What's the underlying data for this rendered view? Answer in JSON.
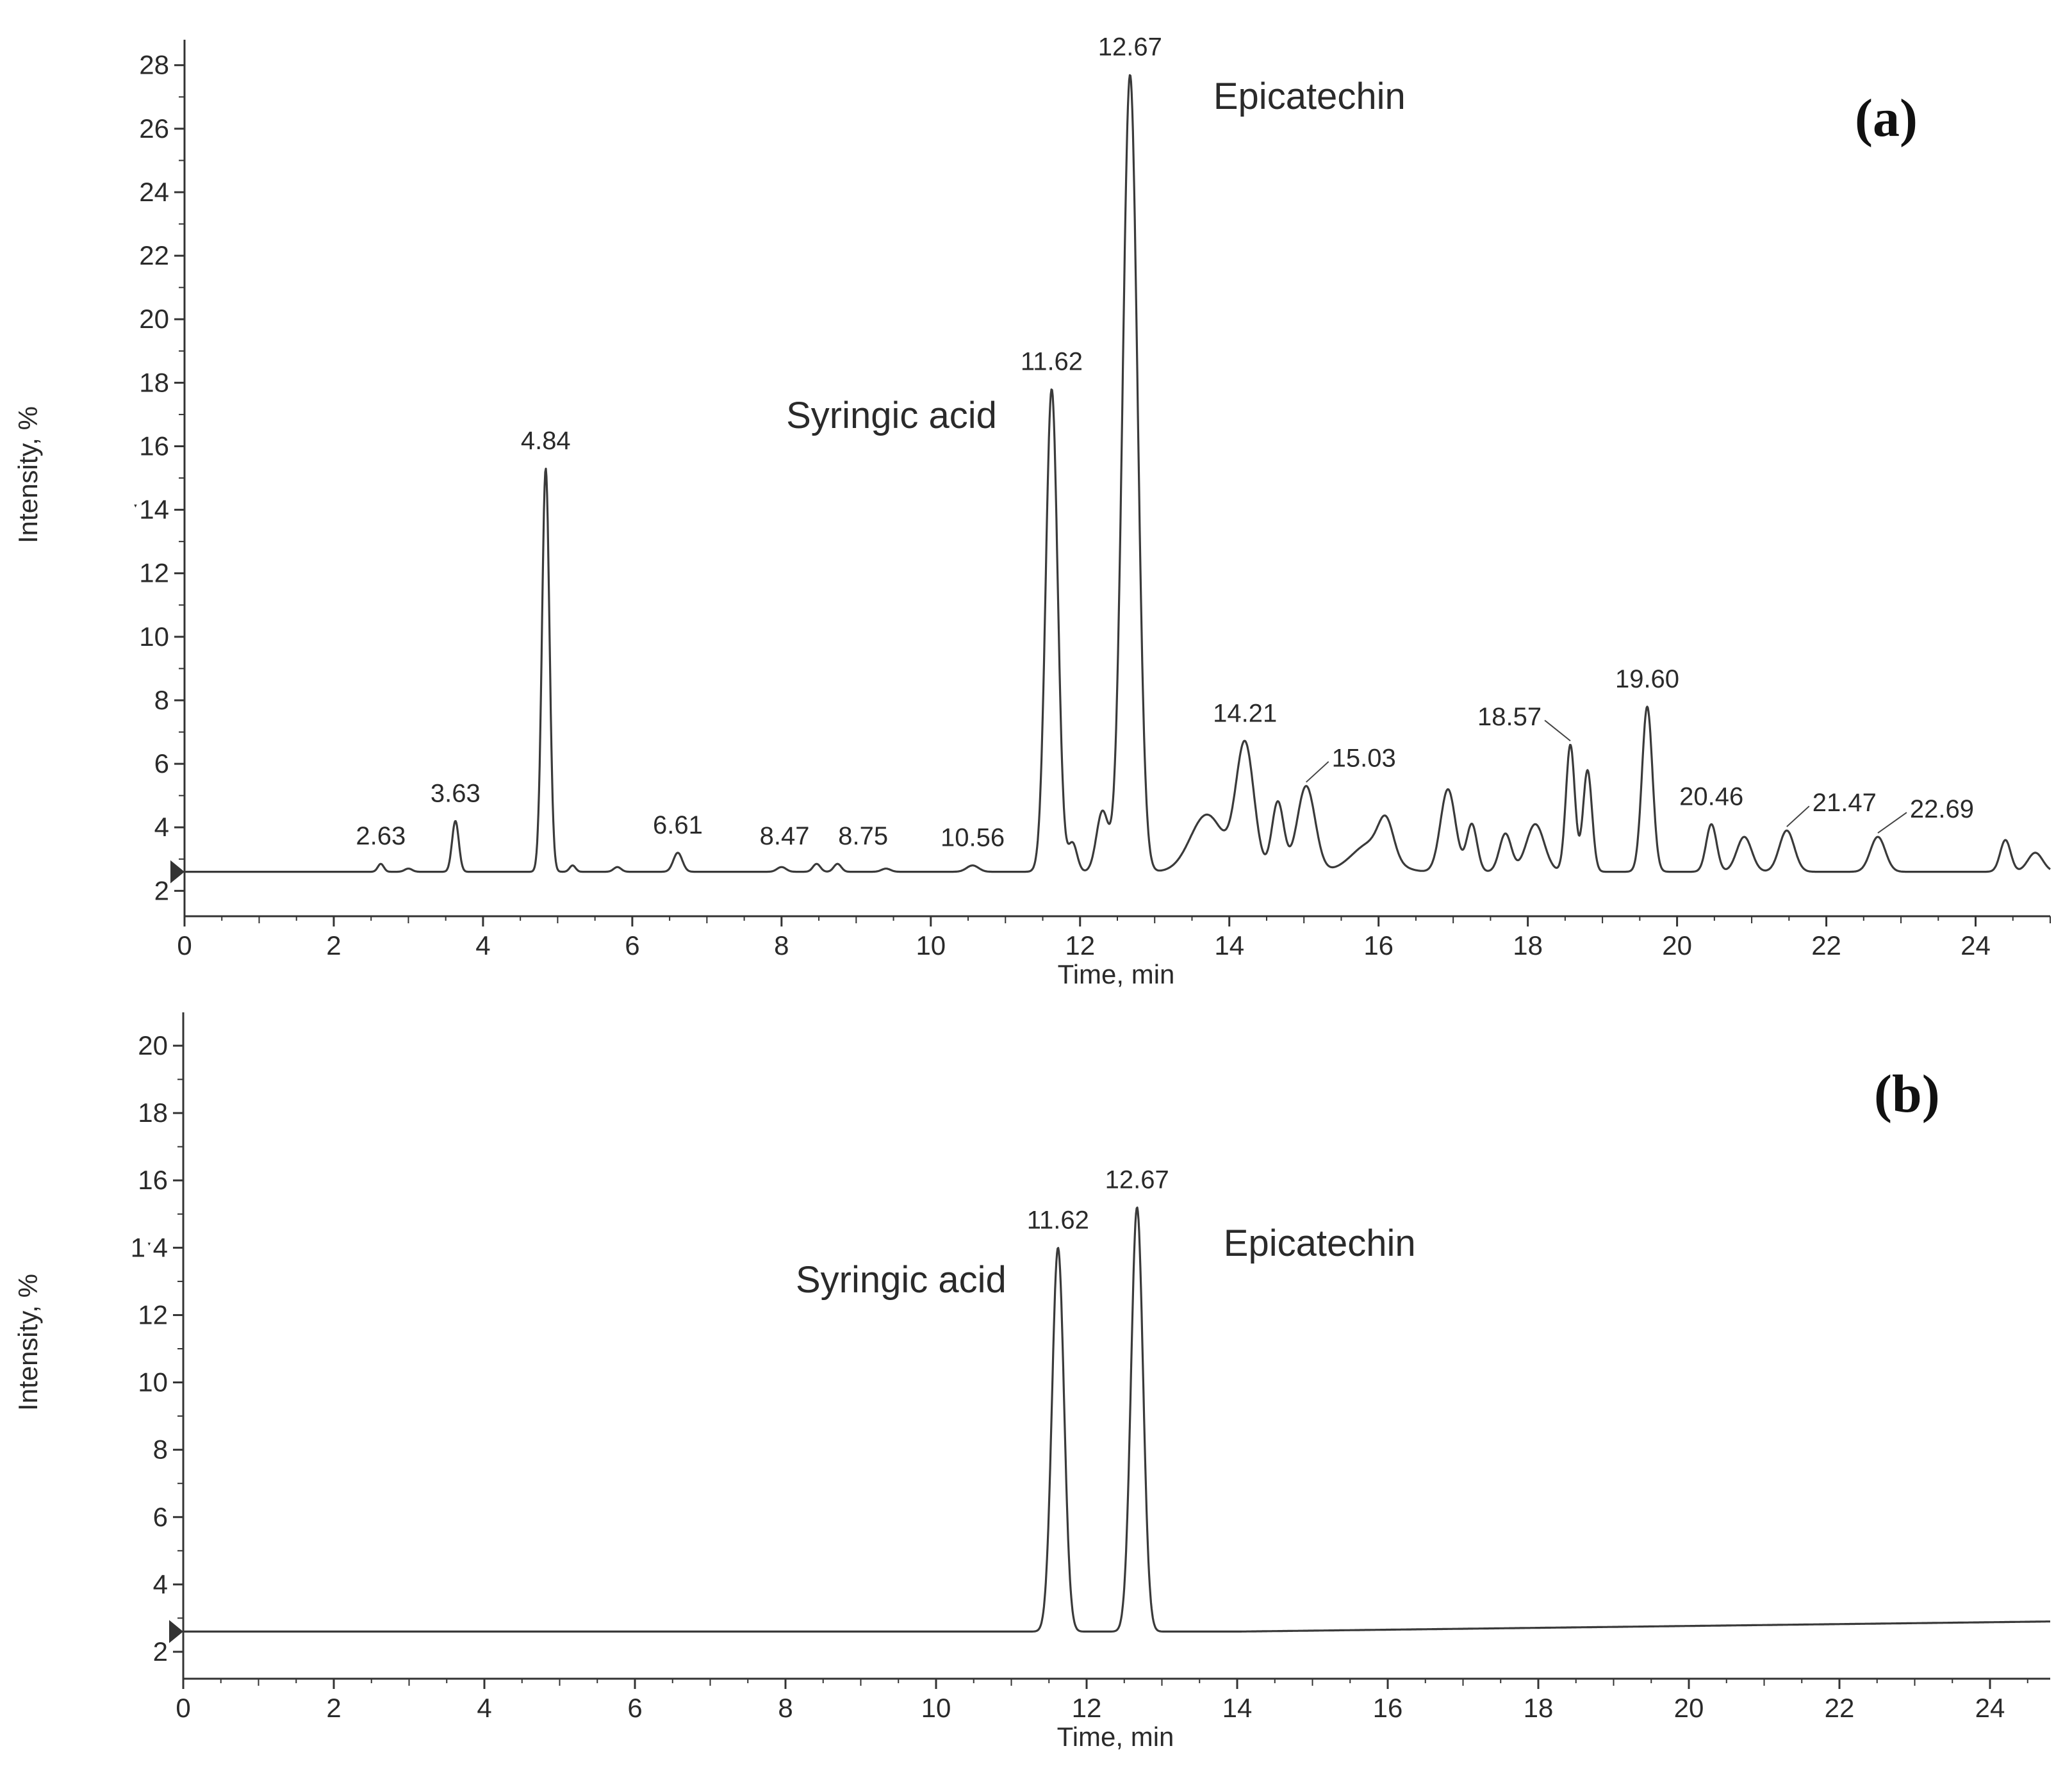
{
  "chart_data": [
    {
      "type": "line",
      "panel_label": "(a)",
      "xlabel": "Time, min",
      "ylabel": "Intensity, %",
      "xlim": [
        0,
        25
      ],
      "ylim": [
        1.2,
        28.6
      ],
      "x_ticks": [
        "0",
        "2",
        "4",
        "6",
        "8",
        "10",
        "12",
        "14",
        "16",
        "18",
        "20",
        "22",
        "24"
      ],
      "y_ticks": [
        "2",
        "4",
        "6",
        "8",
        "10",
        "12",
        "ˑ14",
        "16",
        "18",
        "20",
        "22",
        "24",
        "26",
        "28"
      ],
      "baseline": 2.6,
      "peaks": [
        {
          "rt": 2.63,
          "height": 2.85,
          "width": 0.04
        },
        {
          "rt": 3.0,
          "height": 2.7,
          "width": 0.05
        },
        {
          "rt": 3.63,
          "height": 4.2,
          "width": 0.045
        },
        {
          "rt": 4.84,
          "height": 15.3,
          "width": 0.05
        },
        {
          "rt": 5.2,
          "height": 2.8,
          "width": 0.04
        },
        {
          "rt": 5.8,
          "height": 2.75,
          "width": 0.05
        },
        {
          "rt": 6.61,
          "height": 3.2,
          "width": 0.06
        },
        {
          "rt": 8.0,
          "height": 2.75,
          "width": 0.06
        },
        {
          "rt": 8.47,
          "height": 2.85,
          "width": 0.05
        },
        {
          "rt": 8.75,
          "height": 2.85,
          "width": 0.05
        },
        {
          "rt": 9.4,
          "height": 2.7,
          "width": 0.06
        },
        {
          "rt": 10.56,
          "height": 2.8,
          "width": 0.08
        },
        {
          "rt": 11.62,
          "height": 17.8,
          "width": 0.08
        },
        {
          "rt": 11.9,
          "height": 3.5,
          "width": 0.06
        },
        {
          "rt": 12.3,
          "height": 4.5,
          "width": 0.08
        },
        {
          "rt": 12.67,
          "height": 27.7,
          "width": 0.1
        },
        {
          "rt": 13.7,
          "height": 4.4,
          "width": 0.22
        },
        {
          "rt": 14.21,
          "height": 6.6,
          "width": 0.12
        },
        {
          "rt": 14.65,
          "height": 4.8,
          "width": 0.08
        },
        {
          "rt": 15.03,
          "height": 5.3,
          "width": 0.12
        },
        {
          "rt": 15.9,
          "height": 3.5,
          "width": 0.25
        },
        {
          "rt": 16.1,
          "height": 3.7,
          "width": 0.1
        },
        {
          "rt": 16.93,
          "height": 5.2,
          "width": 0.1
        },
        {
          "rt": 17.25,
          "height": 4.1,
          "width": 0.07
        },
        {
          "rt": 17.7,
          "height": 3.8,
          "width": 0.08
        },
        {
          "rt": 18.1,
          "height": 4.1,
          "width": 0.12
        },
        {
          "rt": 18.57,
          "height": 6.6,
          "width": 0.06
        },
        {
          "rt": 18.8,
          "height": 5.8,
          "width": 0.06
        },
        {
          "rt": 19.6,
          "height": 7.8,
          "width": 0.07
        },
        {
          "rt": 20.46,
          "height": 4.1,
          "width": 0.07
        },
        {
          "rt": 20.9,
          "height": 3.7,
          "width": 0.1
        },
        {
          "rt": 21.47,
          "height": 3.9,
          "width": 0.1
        },
        {
          "rt": 22.69,
          "height": 3.7,
          "width": 0.1
        },
        {
          "rt": 24.4,
          "height": 3.6,
          "width": 0.07
        },
        {
          "rt": 24.8,
          "height": 3.2,
          "width": 0.1
        }
      ],
      "peak_labels": [
        {
          "text": "2.63",
          "rt": 2.63
        },
        {
          "text": "3.63",
          "rt": 3.63
        },
        {
          "text": "4.84",
          "rt": 4.84
        },
        {
          "text": "6.61",
          "rt": 6.61
        },
        {
          "text": "8.47",
          "rt": 8.47
        },
        {
          "text": "8.75",
          "rt": 8.75
        },
        {
          "text": "10.56",
          "rt": 10.56
        },
        {
          "text": "11.62",
          "rt": 11.62
        },
        {
          "text": "12.67",
          "rt": 12.67
        },
        {
          "text": "14.21",
          "rt": 14.21
        },
        {
          "text": "15.03",
          "rt": 15.03
        },
        {
          "text": "18.57",
          "rt": 18.57
        },
        {
          "text": "19.60",
          "rt": 19.6
        },
        {
          "text": "20.46",
          "rt": 20.46
        },
        {
          "text": "21.47",
          "rt": 21.47
        },
        {
          "text": "22.69",
          "rt": 22.69
        }
      ],
      "annotations": [
        {
          "text": "Syringic acid",
          "rt": 11.62
        },
        {
          "text": "Epicatechin",
          "rt": 12.67
        }
      ]
    },
    {
      "type": "line",
      "panel_label": "(b)",
      "xlabel": "Time, min",
      "ylabel": "Intensity, %",
      "xlim": [
        0,
        24.8
      ],
      "ylim": [
        1.2,
        20.8
      ],
      "x_ticks": [
        "0",
        "2",
        "4",
        "6",
        "8",
        "10",
        "12",
        "14",
        "16",
        "18",
        "20",
        "22",
        "24"
      ],
      "y_ticks": [
        "2",
        "4",
        "6",
        "8",
        "10",
        "12",
        "1ˑ4",
        "16",
        "18",
        "20"
      ],
      "baseline": 2.6,
      "baseline_end": 2.9,
      "peaks": [
        {
          "rt": 11.62,
          "height": 14.0,
          "width": 0.08
        },
        {
          "rt": 12.67,
          "height": 15.2,
          "width": 0.08
        }
      ],
      "peak_labels": [
        {
          "text": "11.62",
          "rt": 11.62
        },
        {
          "text": "12.67",
          "rt": 12.67
        }
      ],
      "annotations": [
        {
          "text": "Syringic acid",
          "rt": 11.62
        },
        {
          "text": "Epicatechin",
          "rt": 12.67
        }
      ]
    }
  ]
}
